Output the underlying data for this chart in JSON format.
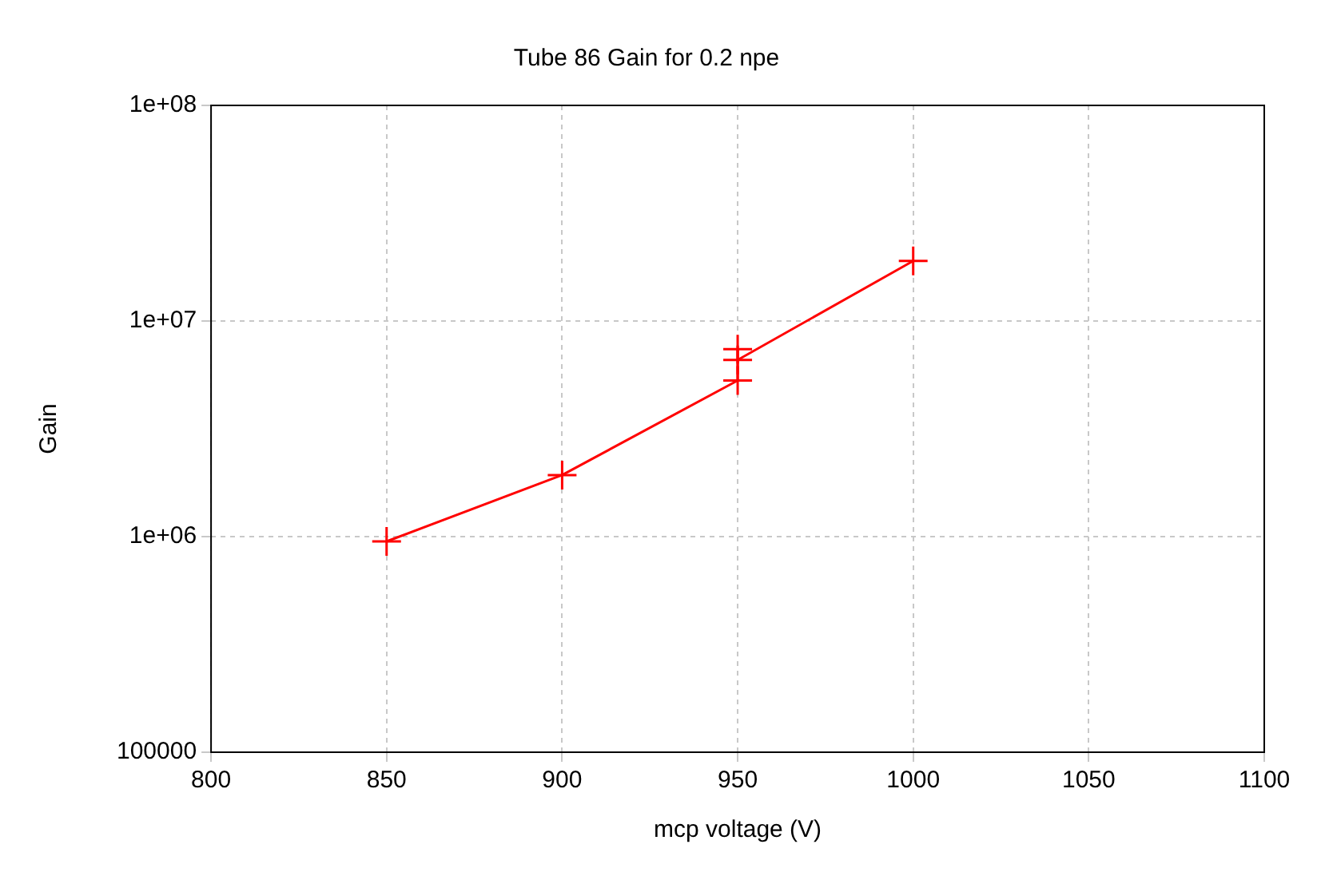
{
  "chart_data": {
    "type": "line",
    "title": "Tube 86 Gain for 0.2 npe",
    "xlabel": "mcp voltage (V)",
    "ylabel": "Gain",
    "x": [
      850,
      900,
      950,
      950,
      950,
      1000
    ],
    "series": [
      {
        "color": "#ff0000",
        "values": [
          950000,
          1930000,
          5300000,
          7400000,
          6600000,
          19000000
        ]
      }
    ],
    "xlim": [
      800,
      1100
    ],
    "xticks": [
      800,
      850,
      900,
      950,
      1000,
      1050,
      1100
    ],
    "ylim": [
      100000,
      100000000
    ],
    "yticks": [
      100000,
      {
        "value": 1000000,
        "label": "1e+06"
      },
      {
        "value": 10000000,
        "label": "1e+07"
      },
      {
        "value": 100000000,
        "label": "1e+08"
      }
    ],
    "log": "y",
    "grid": true,
    "legend": false,
    "marker": "cross",
    "line_style": "solid"
  }
}
